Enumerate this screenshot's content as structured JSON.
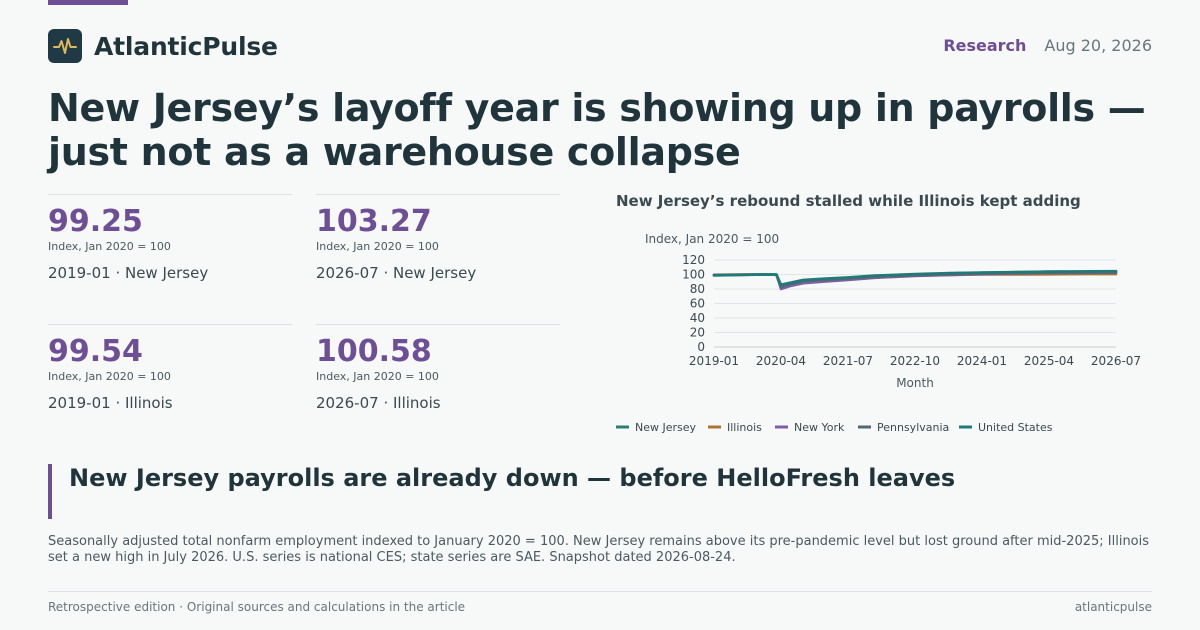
{
  "brand": {
    "name": "AtlanticPulse",
    "logo_icon": "pulse-icon"
  },
  "header": {
    "section": "Research",
    "date": "Aug 20, 2026"
  },
  "headline": "New Jersey’s layoff year is showing up in payrolls — just not as a warehouse collapse",
  "stats": [
    {
      "value": "99.25",
      "unit": "Index, Jan 2020 = 100",
      "caption": "2019-01 · New Jersey"
    },
    {
      "value": "103.27",
      "unit": "Index, Jan 2020 = 100",
      "caption": "2026-07 · New Jersey"
    },
    {
      "value": "99.54",
      "unit": "Index, Jan 2020 = 100",
      "caption": "2019-01 · Illinois"
    },
    {
      "value": "100.58",
      "unit": "Index, Jan 2020 = 100",
      "caption": "2026-07 · Illinois"
    }
  ],
  "chart_data": {
    "type": "line",
    "title": "New Jersey’s rebound stalled while Illinois kept adding",
    "ylabel": "Index, Jan 2020 = 100",
    "xlabel": "Month",
    "ylim": [
      0,
      120
    ],
    "yticks": [
      "0",
      "20",
      "40",
      "60",
      "80",
      "100",
      "120"
    ],
    "xticks": [
      "2019-01",
      "2020-04",
      "2021-07",
      "2022-10",
      "2024-01",
      "2025-04",
      "2026-07"
    ],
    "grid": true,
    "legend_position": "bottom",
    "x": [
      "2019-01",
      "2019-07",
      "2020-01",
      "2020-03",
      "2020-04",
      "2020-06",
      "2020-09",
      "2021-01",
      "2021-07",
      "2022-01",
      "2022-10",
      "2023-06",
      "2024-01",
      "2024-10",
      "2025-04",
      "2025-07",
      "2026-01",
      "2026-07"
    ],
    "series": [
      {
        "name": "New Jersey",
        "color": "#2a7f73",
        "values": [
          99.25,
          99.6,
          100,
          99.8,
          82,
          86,
          91,
          93,
          95.5,
          98,
          100,
          101.5,
          102.5,
          103.3,
          103.8,
          104,
          103.6,
          103.27
        ]
      },
      {
        "name": "Illinois",
        "color": "#a9742c",
        "values": [
          99.54,
          99.8,
          100,
          99.7,
          84,
          87,
          91.5,
          93,
          94.5,
          97,
          98.5,
          99.5,
          100,
          100.2,
          100.3,
          100.4,
          100.5,
          100.58
        ]
      },
      {
        "name": "New York",
        "color": "#7e5ea6",
        "values": [
          99.2,
          99.6,
          100,
          99.6,
          80,
          84,
          88,
          90,
          92.5,
          95.5,
          98,
          99.5,
          100.5,
          101.5,
          102,
          102.2,
          102.4,
          102.6
        ]
      },
      {
        "name": "Pennsylvania",
        "color": "#4e6a70",
        "values": [
          99.4,
          99.7,
          100,
          99.7,
          83,
          86.5,
          91,
          92.5,
          94.5,
          97,
          99,
          100.5,
          101.5,
          102.2,
          102.6,
          102.8,
          103,
          103.1
        ]
      },
      {
        "name": "United States",
        "color": "#1f7a78",
        "values": [
          98.8,
          99.4,
          100,
          99.8,
          86,
          88.5,
          92.5,
          94,
          96,
          98.5,
          100.5,
          102,
          102.8,
          103.5,
          104,
          104.2,
          104.4,
          104.5
        ]
      }
    ]
  },
  "pullquote": "New Jersey payrolls are already down — before HelloFresh leaves",
  "note": "Seasonally adjusted total nonfarm employment indexed to January 2020 = 100. New Jersey remains above its pre-pandemic level but lost ground after mid-2025; Illinois set a new high in July 2026. U.S. series is national CES; state series are SAE. Snapshot dated 2026-08-24.",
  "footer": {
    "left": "Retrospective edition · Original sources and calculations in the article",
    "right": "atlanticpulse"
  }
}
